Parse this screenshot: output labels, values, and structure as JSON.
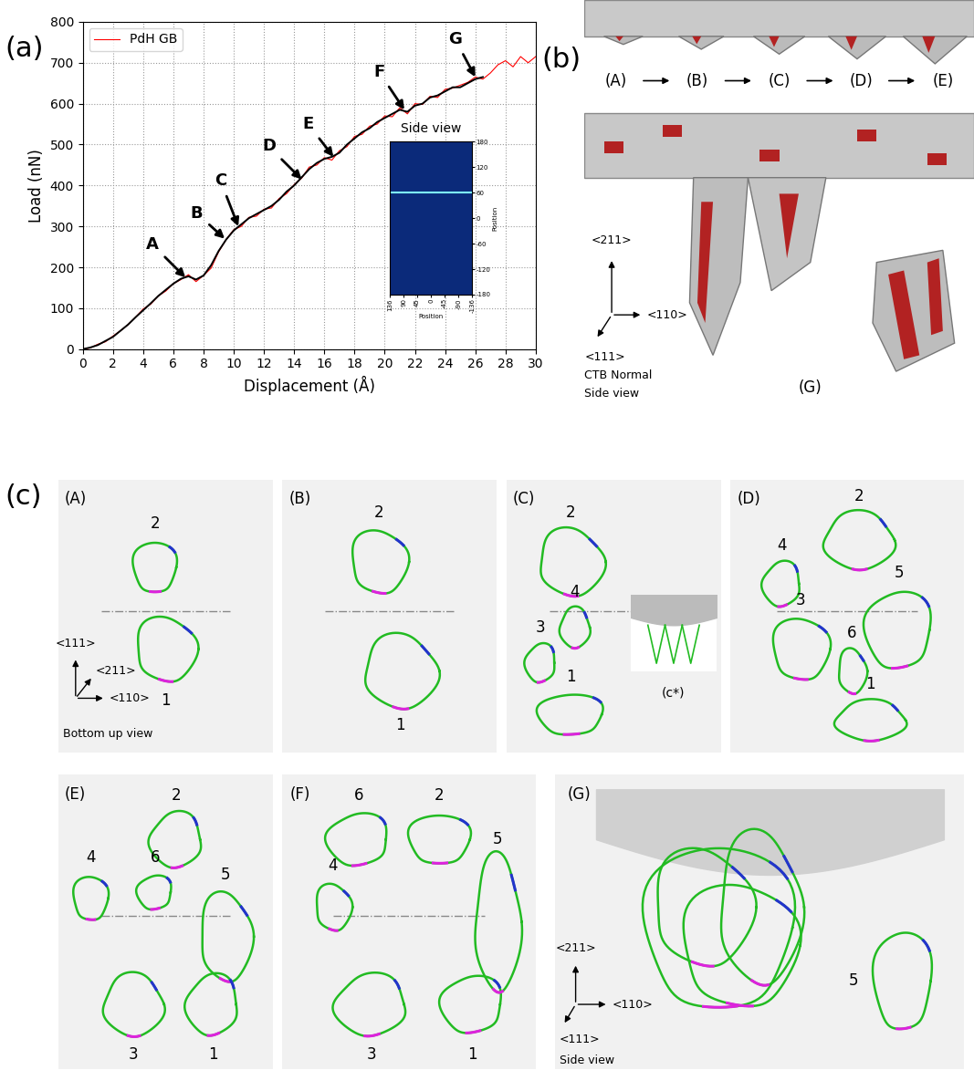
{
  "chart_data": {
    "type": "line",
    "xlabel": "Displacement (Å)",
    "ylabel": "Load (nN)",
    "xlim": [
      0,
      30
    ],
    "ylim": [
      0,
      800
    ],
    "xticks": [
      0,
      2,
      4,
      6,
      8,
      10,
      12,
      14,
      16,
      18,
      20,
      22,
      24,
      26,
      28,
      30
    ],
    "yticks": [
      0,
      100,
      200,
      300,
      400,
      500,
      600,
      700,
      800
    ],
    "grid": true,
    "legend": "upper left",
    "series": [
      {
        "name": "PdH GB",
        "color": "#ff0000",
        "line_style": "solid",
        "x": [
          0,
          0.5,
          1,
          1.5,
          2,
          2.5,
          3,
          3.5,
          4,
          4.5,
          5,
          5.5,
          6,
          6.5,
          7,
          7.5,
          8,
          8.5,
          9,
          9.5,
          10,
          10.5,
          11,
          11.5,
          12,
          12.5,
          13,
          13.5,
          14,
          14.5,
          15,
          15.5,
          16,
          16.5,
          17,
          17.5,
          18,
          18.5,
          19,
          19.5,
          20,
          20.5,
          21,
          21.5,
          22,
          22.5,
          23,
          23.5,
          24,
          24.5,
          25,
          25.5,
          26,
          26.5,
          27,
          27.5,
          28,
          28.5,
          29,
          29.5,
          30
        ],
        "values": [
          0,
          3,
          12,
          18,
          32,
          45,
          60,
          78,
          98,
          110,
          130,
          142,
          160,
          170,
          182,
          165,
          180,
          198,
          238,
          268,
          292,
          300,
          322,
          325,
          342,
          345,
          368,
          380,
          402,
          418,
          445,
          450,
          468,
          462,
          485,
          495,
          520,
          525,
          545,
          550,
          570,
          568,
          590,
          575,
          600,
          598,
          618,
          615,
          635,
          638,
          645,
          652,
          665,
          660,
          675,
          695,
          705,
          690,
          715,
          700,
          715
        ]
      },
      {
        "color": "#000000",
        "line_style": "solid",
        "x": [
          0,
          0.5,
          1,
          1.5,
          2,
          2.5,
          3,
          3.5,
          4,
          4.5,
          5,
          5.5,
          6,
          6.5,
          7,
          7.5,
          8,
          8.5,
          9,
          9.5,
          10,
          10.5,
          11,
          11.5,
          12,
          12.5,
          13,
          13.5,
          14,
          14.5,
          15,
          15.5,
          16,
          16.5,
          17,
          17.5,
          18,
          18.5,
          19,
          19.5,
          20,
          20.5,
          21,
          21.5,
          22,
          22.5,
          23,
          23.5,
          24,
          24.5,
          25,
          25.5,
          26,
          26.5
        ],
        "values": [
          0,
          4,
          10,
          20,
          30,
          45,
          60,
          78,
          95,
          112,
          130,
          145,
          160,
          172,
          178,
          170,
          180,
          205,
          240,
          268,
          290,
          305,
          320,
          330,
          340,
          350,
          365,
          385,
          400,
          420,
          440,
          455,
          465,
          470,
          480,
          500,
          515,
          530,
          540,
          555,
          565,
          575,
          585,
          580,
          595,
          600,
          615,
          620,
          630,
          640,
          640,
          650,
          660,
          665
        ]
      }
    ],
    "annotations": [
      {
        "text": "A",
        "x": 6.8,
        "y": 175
      },
      {
        "text": "B",
        "x": 9.4,
        "y": 270
      },
      {
        "text": "C",
        "x": 10.3,
        "y": 300
      },
      {
        "text": "D",
        "x": 14.5,
        "y": 415
      },
      {
        "text": "E",
        "x": 16.6,
        "y": 470
      },
      {
        "text": "F",
        "x": 21.3,
        "y": 585
      },
      {
        "text": "G",
        "x": 26,
        "y": 665
      }
    ],
    "inset": {
      "title": "Side view",
      "xlabel": "Position",
      "ylabel": "Position",
      "xlim": [
        136,
        -136
      ],
      "xticks": [
        136,
        90,
        45,
        0,
        -45,
        -90,
        -136
      ],
      "ylim": [
        -180,
        180
      ],
      "yticks": [
        180,
        120,
        60,
        0,
        -60,
        -120,
        -180
      ],
      "interface_position": 60
    }
  },
  "panel_labels": [
    "(a)",
    "(b)",
    "(c)"
  ],
  "panel_b": {
    "sequence": [
      "(A)",
      "(B)",
      "(C)",
      "(D)",
      "(E)"
    ],
    "final_label": "(G)",
    "axes": [
      "<211>",
      "<110>",
      "<111>"
    ],
    "axis_note": [
      "CTB Normal",
      "Side view"
    ]
  },
  "panel_c": {
    "subpanels": [
      {
        "label": "(A)",
        "loops": [
          "2",
          "1"
        ],
        "axes": [
          "<111>",
          "<211>",
          "<110>"
        ],
        "view": "Bottom up view"
      },
      {
        "label": "(B)",
        "loops": [
          "2",
          "1"
        ]
      },
      {
        "label": "(C)",
        "loops": [
          "2",
          "4",
          "3",
          "1"
        ],
        "inset": "(c*)"
      },
      {
        "label": "(D)",
        "loops": [
          "2",
          "4",
          "5",
          "3",
          "6",
          "1"
        ]
      },
      {
        "label": "(E)",
        "loops": [
          "2",
          "6",
          "4",
          "5",
          "3",
          "1"
        ]
      },
      {
        "label": "(F)",
        "loops": [
          "6",
          "2",
          "4",
          "5",
          "3",
          "1"
        ]
      },
      {
        "label": "(G)",
        "loops": [
          "5"
        ],
        "axes": [
          "<211>",
          "<110>",
          "<111>"
        ],
        "view": "Side view"
      }
    ]
  }
}
